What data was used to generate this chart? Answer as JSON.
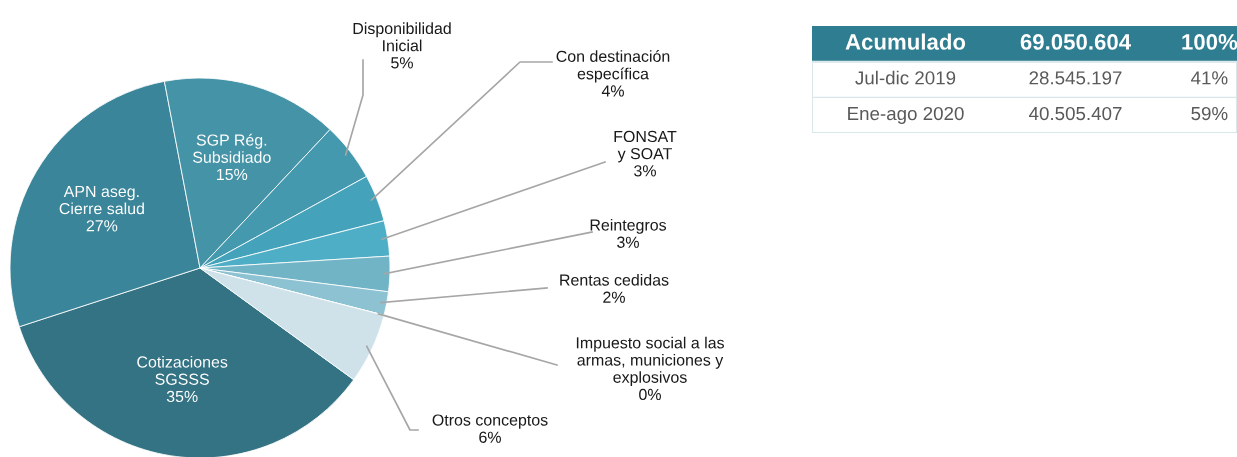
{
  "chart_data": [
    {
      "type": "pie",
      "categories": [
        "Cotizaciones\nSGSSS",
        "APN aseg.\nCierre salud",
        "SGP Rég.\nSubsidiado",
        "Disponibilidad\nInicial",
        "Con destinación\nespecífica",
        "FONSAT\ny SOAT",
        "Reintegros",
        "Rentas cedidas",
        "Impuesto social a las\narmas, municiones y\nexplosivos",
        "Otros conceptos"
      ],
      "values": [
        35,
        27,
        15,
        5,
        4,
        3,
        3,
        2,
        0,
        6
      ],
      "value_labels": [
        "35%",
        "27%",
        "15%",
        "5%",
        "4%",
        "3%",
        "3%",
        "2%",
        "0%",
        "6%"
      ],
      "colors": [
        "#347383",
        "#3a8599",
        "#4593a6",
        "#4499ae",
        "#44a3bb",
        "#4eaec6",
        "#71b4c6",
        "#8cc2d2",
        "#b0d4df",
        "#cfe2ea"
      ]
    },
    {
      "type": "other",
      "categories": [
        "Acumulado",
        "Jul-dic 2019",
        "Ene-ago 2020"
      ],
      "annotations": [
        "69.050.604",
        "100%",
        "28.545.197",
        "41%",
        "40.505.407",
        "59%"
      ],
      "color": "#2f7d91"
    }
  ]
}
